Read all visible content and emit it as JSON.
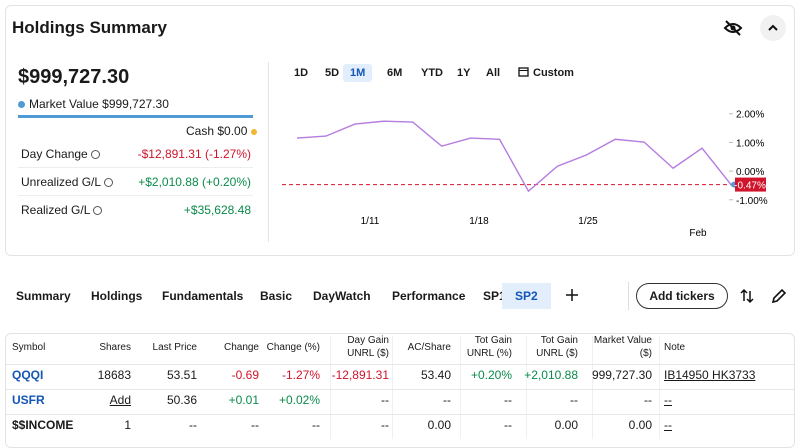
{
  "summary": {
    "title": "Holdings Summary",
    "total": "$999,727.30",
    "market_value_label": "Market Value $999,727.30",
    "cash_label": "Cash $0.00",
    "rows": [
      {
        "label": "Day Change",
        "value": "-$12,891.31 (-1.27%)"
      },
      {
        "label": "Unrealized G/L",
        "value": "+$2,010.88 (+0.20%)"
      },
      {
        "label": "Realized G/L",
        "value": "+$35,628.48"
      }
    ]
  },
  "ranges": [
    "1D",
    "5D",
    "1M",
    "6M",
    "YTD",
    "1Y",
    "All",
    "Custom"
  ],
  "selected_range": "1M",
  "chart": {
    "type": "line",
    "color": "#b57be0",
    "values": [
      1.15,
      1.22,
      1.64,
      1.74,
      1.71,
      0.87,
      1.15,
      1.11,
      -0.7,
      0.17,
      0.56,
      1.11,
      1.01,
      0.1,
      0.8,
      -0.47
    ],
    "ylim": [
      -1.2,
      2.2
    ],
    "yticks": [
      {
        "value": 2,
        "label": "2.00%"
      },
      {
        "value": 1,
        "label": "1.00%"
      },
      {
        "value": 0,
        "label": "0.00%"
      },
      {
        "value": -1,
        "label": "-1.00%"
      }
    ],
    "xtick_labels": [
      "1/11",
      "1/18",
      "1/25",
      "Feb"
    ],
    "reference": {
      "value": -0.47,
      "label": "-0.47%",
      "color": "#d0142c"
    }
  },
  "tabs": [
    "Summary",
    "Holdings",
    "Fundamentals",
    "Basic",
    "DayWatch",
    "Performance",
    "SP1",
    "SP2"
  ],
  "selected_tab": "SP2",
  "add_button": "Add tickers",
  "table": {
    "columns": [
      [
        "Symbol"
      ],
      [
        "Shares"
      ],
      [
        "Last Price"
      ],
      [
        "Change"
      ],
      [
        "Change (%)"
      ],
      [
        "Day Gain",
        "UNRL ($)"
      ],
      [
        "AC/Share"
      ],
      [
        "Tot Gain",
        "UNRL (%)"
      ],
      [
        "Tot Gain",
        "UNRL ($)"
      ],
      [
        "Market Value",
        "($)"
      ],
      [
        "Note"
      ]
    ],
    "rows": [
      [
        "QQQI",
        "18683",
        "53.51",
        "-0.69",
        "-1.27%",
        "-12,891.31",
        "53.40",
        "+0.20%",
        "+2,010.88",
        "999,727.30",
        "IB14950 HK3733"
      ],
      [
        "USFR",
        "Add",
        "50.36",
        "+0.01",
        "+0.02%",
        "--",
        "--",
        "--",
        "--",
        "--",
        "--"
      ],
      [
        "$$INCOME",
        "1",
        "--",
        "--",
        "--",
        "--",
        "0.00",
        "--",
        "0.00",
        "0.00",
        "--"
      ]
    ]
  }
}
